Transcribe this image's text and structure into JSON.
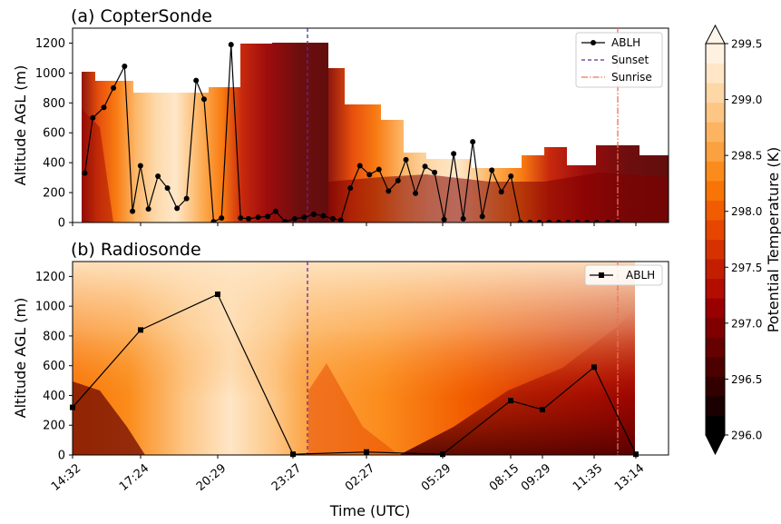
{
  "chart_data": [
    {
      "type": "line",
      "title": "(a) CopterSonde",
      "xlabel": "",
      "ylabel": "Altitude AGL (m)",
      "ylim": [
        0,
        1300
      ],
      "yticks": [
        "0",
        "200",
        "400",
        "600",
        "800",
        "1000",
        "1200"
      ],
      "background": "filled contour of potential temperature vs time and altitude",
      "legend_position": "top-right",
      "series": [
        {
          "name": "ABLH",
          "marker": "circle",
          "x_hours": [
            0.1,
            0.35,
            0.7,
            1.0,
            1.35,
            1.6,
            1.85,
            2.1,
            2.4,
            2.7,
            3.0,
            3.3,
            3.6,
            3.85,
            4.15,
            4.4,
            4.7,
            5.0,
            5.25,
            5.55,
            5.85,
            6.1,
            6.4,
            6.7,
            7.0,
            7.3,
            7.6,
            7.9,
            8.15,
            8.45,
            8.75,
            9.05,
            9.35,
            9.65,
            9.95,
            10.2,
            10.5,
            10.8,
            11.1,
            11.4,
            11.7,
            12.0,
            12.3,
            12.6,
            12.9,
            13.2,
            13.5,
            13.8,
            14.1,
            14.4,
            14.7,
            15.0,
            15.3,
            15.6,
            15.9,
            16.2,
            16.55,
            16.85,
            17.15,
            17.45,
            17.75,
            18.05
          ],
          "values": [
            330,
            700,
            770,
            900,
            1045,
            75,
            380,
            90,
            310,
            230,
            95,
            160,
            950,
            825,
            5,
            30,
            1190,
            30,
            25,
            35,
            40,
            75,
            5,
            25,
            35,
            55,
            45,
            25,
            15,
            230,
            380,
            320,
            355,
            210,
            280,
            420,
            195,
            375,
            335,
            20,
            460,
            25,
            540,
            40,
            350,
            205,
            310,
            0,
            0,
            0,
            0,
            0,
            0,
            0,
            0,
            0,
            0,
            0,
            0,
            0,
            0,
            0
          ]
        }
      ],
      "vlines": [
        {
          "name": "Sunset",
          "style": "dashed",
          "color": "#5b2a9e"
        },
        {
          "name": "Sunrise",
          "style": "dashdot",
          "color": "#f07058"
        }
      ]
    },
    {
      "type": "line",
      "title": "(b) Radiosonde",
      "xlabel": "Time (UTC)",
      "ylabel": "Altitude AGL (m)",
      "ylim": [
        0,
        1300
      ],
      "yticks": [
        "0",
        "200",
        "400",
        "600",
        "800",
        "1000",
        "1200"
      ],
      "categories": [
        "14:32",
        "17:24",
        "20:29",
        "23:27",
        "02:27",
        "05:29",
        "08:15",
        "09:29",
        "11:35",
        "13:14"
      ],
      "legend_position": "top-right",
      "series": [
        {
          "name": "ABLH",
          "marker": "square",
          "values": [
            320,
            840,
            1080,
            5,
            20,
            5,
            365,
            305,
            590,
            5
          ]
        }
      ]
    }
  ],
  "colorbar": {
    "label": "Potential Temperature (K)",
    "range": [
      296.0,
      299.5
    ],
    "ticks": [
      "296.0",
      "296.5",
      "297.0",
      "297.5",
      "298.0",
      "298.5",
      "299.0",
      "299.5"
    ],
    "colors": [
      "#000000",
      "#1a0000",
      "#330000",
      "#4d0000",
      "#660101",
      "#800000",
      "#990000",
      "#b30d00",
      "#c41e00",
      "#d63200",
      "#e64600",
      "#f25c00",
      "#f87406",
      "#fb8c1c",
      "#fca13f",
      "#fcb462",
      "#fdc685",
      "#fdd7a6",
      "#fee6c6",
      "#fff1e0"
    ]
  }
}
